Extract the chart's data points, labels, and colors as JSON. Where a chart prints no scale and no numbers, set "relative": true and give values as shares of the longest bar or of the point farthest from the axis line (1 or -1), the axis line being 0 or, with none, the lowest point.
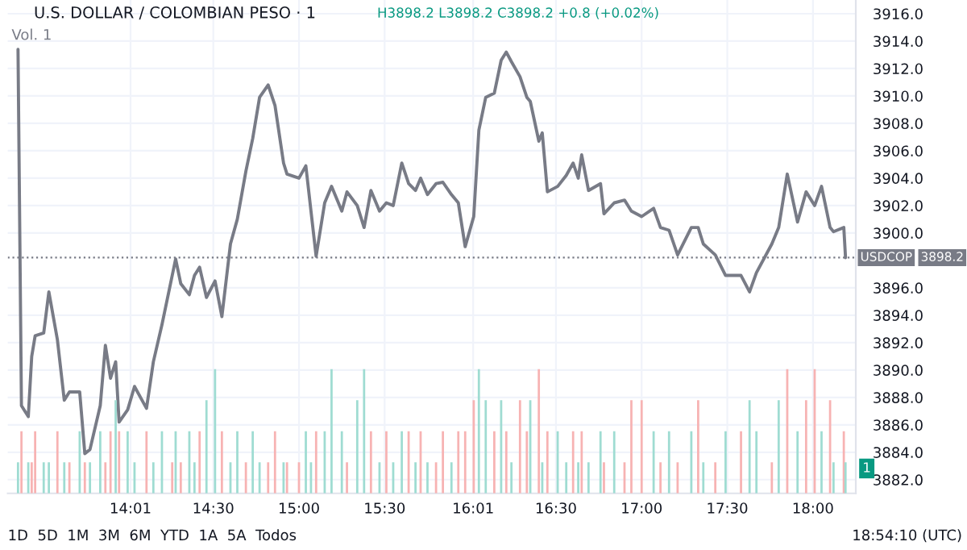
{
  "chart_data": [
    {
      "type": "line",
      "title": "U.S. DOLLAR / COLOMBIAN PESO · 1",
      "subtitle": "H3898.2 L3898.2 C3898.2 +0.8 (+0.02%)",
      "x": [
        13.36,
        13.38,
        13.42,
        13.44,
        13.46,
        13.51,
        13.54,
        13.59,
        13.63,
        13.66,
        13.72,
        13.75,
        13.78,
        13.84,
        13.87,
        13.9,
        13.93,
        13.95,
        14.0,
        14.04,
        14.11,
        14.15,
        14.2,
        14.26,
        14.28,
        14.31,
        14.36,
        14.39,
        14.42,
        14.46,
        14.51,
        14.55,
        14.6,
        14.64,
        14.69,
        14.73,
        14.77,
        14.82,
        14.86,
        14.91,
        14.93,
        15.0,
        15.04,
        15.07,
        15.1,
        15.15,
        15.19,
        15.25,
        15.28,
        15.34,
        15.38,
        15.42,
        15.47,
        15.51,
        15.55,
        15.6,
        15.64,
        15.68,
        15.71,
        15.75,
        15.8,
        15.84,
        15.89,
        15.93,
        15.97,
        16.02,
        16.05,
        16.09,
        16.14,
        16.18,
        16.21,
        16.24,
        16.29,
        16.33,
        16.35,
        16.4,
        16.42,
        16.45,
        16.51,
        16.56,
        16.6,
        16.63,
        16.65,
        16.69,
        16.76,
        16.78,
        16.84,
        16.9,
        16.94,
        17.0,
        17.07,
        17.11,
        17.16,
        17.21,
        17.29,
        17.33,
        17.36,
        17.43,
        17.49,
        17.58,
        17.63,
        17.67,
        17.76,
        17.8,
        17.85,
        17.91,
        17.96,
        18.01,
        18.05,
        18.1,
        18.12,
        18.18,
        18.19
      ],
      "series": [
        {
          "color": "#787b86",
          "values": [
            3913.4,
            3887.4,
            3886.6,
            3891.0,
            3892.5,
            3892.7,
            3895.7,
            3892.2,
            3887.8,
            3888.4,
            3888.4,
            3883.9,
            3884.2,
            3887.4,
            3891.8,
            3889.4,
            3890.6,
            3886.2,
            3887.1,
            3888.8,
            3887.2,
            3890.6,
            3893.3,
            3896.9,
            3898.1,
            3896.3,
            3895.5,
            3896.9,
            3897.5,
            3895.3,
            3896.5,
            3893.9,
            3899.2,
            3901.0,
            3904.5,
            3906.9,
            3909.9,
            3910.8,
            3909.3,
            3905.1,
            3904.3,
            3904.0,
            3904.9,
            3901.6,
            3898.3,
            3902.2,
            3903.4,
            3901.6,
            3903.0,
            3902.0,
            3900.4,
            3903.1,
            3901.6,
            3902.2,
            3902.0,
            3905.1,
            3903.6,
            3903.1,
            3904.0,
            3902.8,
            3903.6,
            3903.7,
            3902.8,
            3902.2,
            3899.0,
            3901.2,
            3907.5,
            3909.9,
            3910.2,
            3912.6,
            3913.2,
            3912.5,
            3911.4,
            3909.9,
            3909.6,
            3906.7,
            3907.3,
            3903.0,
            3903.4,
            3904.2,
            3905.1,
            3904.0,
            3905.7,
            3903.1,
            3903.6,
            3901.4,
            3902.2,
            3902.4,
            3901.6,
            3901.2,
            3901.8,
            3900.4,
            3900.2,
            3898.4,
            3900.4,
            3900.4,
            3899.2,
            3898.4,
            3896.9,
            3896.9,
            3895.7,
            3897.1,
            3899.2,
            3900.4,
            3904.3,
            3900.8,
            3903.0,
            3902.0,
            3903.4,
            3900.4,
            3900.1,
            3900.4,
            3898.2
          ]
        }
      ],
      "xlim": [
        13.3,
        18.25
      ],
      "xticks": [
        {
          "value": 14.0167,
          "label": "14:01"
        },
        {
          "value": 14.5,
          "label": "14:30"
        },
        {
          "value": 15,
          "label": "15:00"
        },
        {
          "value": 15.5,
          "label": "15:30"
        },
        {
          "value": 16.0167,
          "label": "16:01"
        },
        {
          "value": 16.5,
          "label": "16:30"
        },
        {
          "value": 17,
          "label": "17:00"
        },
        {
          "value": 17.5,
          "label": "17:30"
        },
        {
          "value": 18,
          "label": "18:00"
        }
      ],
      "ylim": [
        3881,
        3917
      ],
      "yticks": [
        {
          "value": 3882,
          "label": "3882.0"
        },
        {
          "value": 3884,
          "label": "3884.0"
        },
        {
          "value": 3886,
          "label": "3886.0"
        },
        {
          "value": 3888,
          "label": "3888.0"
        },
        {
          "value": 3890,
          "label": "3890.0"
        },
        {
          "value": 3892,
          "label": "3892.0"
        },
        {
          "value": 3894,
          "label": "3894.0"
        },
        {
          "value": 3896,
          "label": "3896.0"
        },
        {
          "value": 3900,
          "label": "3900.0"
        },
        {
          "value": 3902,
          "label": "3902.0"
        },
        {
          "value": 3904,
          "label": "3904.0"
        },
        {
          "value": 3906,
          "label": "3906.0"
        },
        {
          "value": 3908,
          "label": "3908.0"
        },
        {
          "value": 3910,
          "label": "3910.0"
        },
        {
          "value": 3912,
          "label": "3912.0"
        },
        {
          "value": 3914,
          "label": "3914.0"
        },
        {
          "value": 3916,
          "label": "3916.0"
        }
      ],
      "grid": true,
      "line_style": "solid",
      "ref_lines": [
        {
          "axis": "y",
          "value": 3898.2,
          "label": "USDCOP",
          "color": "#787b86",
          "line_style": "dotted"
        }
      ],
      "annotations": [
        "Vol. 1",
        "1D  5D  1M  3M  6M  YTD  1A  5A  Todos",
        "18:54:10 (UTC)",
        "3898.2"
      ]
    },
    {
      "type": "bar",
      "relative": true,
      "tick_labels": false,
      "x": [
        13.36,
        13.38,
        13.42,
        13.44,
        13.46,
        13.51,
        13.54,
        13.59,
        13.63,
        13.66,
        13.72,
        13.75,
        13.78,
        13.84,
        13.87,
        13.9,
        13.93,
        13.95,
        14.0,
        14.04,
        14.11,
        14.15,
        14.2,
        14.26,
        14.28,
        14.31,
        14.36,
        14.39,
        14.42,
        14.46,
        14.51,
        14.55,
        14.6,
        14.64,
        14.69,
        14.73,
        14.77,
        14.82,
        14.86,
        14.91,
        14.93,
        15.0,
        15.04,
        15.07,
        15.1,
        15.15,
        15.19,
        15.25,
        15.28,
        15.34,
        15.38,
        15.42,
        15.47,
        15.51,
        15.55,
        15.6,
        15.64,
        15.68,
        15.71,
        15.75,
        15.8,
        15.84,
        15.89,
        15.93,
        15.97,
        16.02,
        16.05,
        16.09,
        16.14,
        16.18,
        16.21,
        16.24,
        16.29,
        16.33,
        16.35,
        16.4,
        16.42,
        16.45,
        16.51,
        16.56,
        16.6,
        16.63,
        16.65,
        16.69,
        16.76,
        16.78,
        16.84,
        16.9,
        16.94,
        17.0,
        17.07,
        17.11,
        17.16,
        17.21,
        17.29,
        17.33,
        17.36,
        17.43,
        17.49,
        17.58,
        17.63,
        17.67,
        17.76,
        17.8,
        17.85,
        17.91,
        17.96,
        18.01,
        18.05,
        18.1,
        18.12,
        18.18,
        18.19
      ],
      "xlim": [
        13.3,
        18.25
      ],
      "values": [
        0.25,
        0.5,
        0.25,
        0.25,
        0.5,
        0.25,
        0.25,
        0.5,
        0.25,
        0.25,
        0.5,
        0.25,
        0.25,
        0.5,
        0.25,
        0.5,
        0.75,
        0.5,
        0.5,
        0.25,
        0.5,
        0.25,
        0.5,
        0.25,
        0.5,
        0.25,
        0.5,
        0.25,
        0.5,
        0.75,
        1,
        0.5,
        0.25,
        0.5,
        0.25,
        0.5,
        0.25,
        0.25,
        0.5,
        0.25,
        0.25,
        0.25,
        0.5,
        0.25,
        0.5,
        0.5,
        1,
        0.5,
        0.25,
        0.75,
        1,
        0.5,
        0.25,
        0.5,
        0.25,
        0.5,
        0.5,
        0.25,
        0.5,
        0.25,
        0.25,
        0.5,
        0.25,
        0.5,
        0.5,
        0.75,
        1,
        0.75,
        0.5,
        0.75,
        0.5,
        0.25,
        0.75,
        0.5,
        0.75,
        1,
        0.25,
        0.5,
        0.5,
        0.25,
        0.5,
        0.25,
        0.5,
        0.25,
        0.5,
        0.25,
        0.5,
        0.25,
        0.75,
        0.75,
        0.5,
        0.25,
        0.5,
        0.25,
        0.5,
        0.75,
        0.25,
        0.25,
        0.5,
        0.5,
        0.75,
        0.5,
        0.25,
        0.75,
        1,
        0.5,
        0.75,
        1,
        0.5,
        0.75,
        0.25,
        0.5,
        0.25
      ],
      "colors": [
        "#9fdcd2",
        "#f7b3b3",
        "#9fdcd2",
        "#f7b3b3",
        "#f7b3b3",
        "#9fdcd2",
        "#9fdcd2",
        "#f7b3b3",
        "#9fdcd2",
        "#f7b3b3",
        "#9fdcd2",
        "#f7b3b3",
        "#9fdcd2",
        "#9fdcd2",
        "#f7b3b3",
        "#f7b3b3",
        "#9fdcd2",
        "#f7b3b3",
        "#9fdcd2",
        "#9fdcd2",
        "#f7b3b3",
        "#9fdcd2",
        "#9fdcd2",
        "#f7b3b3",
        "#9fdcd2",
        "#f7b3b3",
        "#9fdcd2",
        "#9fdcd2",
        "#f7b3b3",
        "#9fdcd2",
        "#9fdcd2",
        "#f7b3b3",
        "#9fdcd2",
        "#9fdcd2",
        "#f7b3b3",
        "#9fdcd2",
        "#9fdcd2",
        "#f7b3b3",
        "#f7b3b3",
        "#9fdcd2",
        "#f7b3b3",
        "#f7b3b3",
        "#9fdcd2",
        "#9fdcd2",
        "#f7b3b3",
        "#9fdcd2",
        "#9fdcd2",
        "#9fdcd2",
        "#f7b3b3",
        "#9fdcd2",
        "#9fdcd2",
        "#f7b3b3",
        "#9fdcd2",
        "#f7b3b3",
        "#9fdcd2",
        "#9fdcd2",
        "#f7b3b3",
        "#9fdcd2",
        "#f7b3b3",
        "#9fdcd2",
        "#f7b3b3",
        "#f7b3b3",
        "#9fdcd2",
        "#f7b3b3",
        "#f7b3b3",
        "#f7b3b3",
        "#9fdcd2",
        "#9fdcd2",
        "#f7b3b3",
        "#9fdcd2",
        "#f7b3b3",
        "#9fdcd2",
        "#f7b3b3",
        "#f7b3b3",
        "#9fdcd2",
        "#f7b3b3",
        "#9fdcd2",
        "#f7b3b3",
        "#9fdcd2",
        "#9fdcd2",
        "#f7b3b3",
        "#9fdcd2",
        "#f7b3b3",
        "#9fdcd2",
        "#9fdcd2",
        "#f7b3b3",
        "#9fdcd2",
        "#f7b3b3",
        "#f7b3b3",
        "#f7b3b3",
        "#9fdcd2",
        "#f7b3b3",
        "#9fdcd2",
        "#f7b3b3",
        "#9fdcd2",
        "#f7b3b3",
        "#9fdcd2",
        "#f7b3b3",
        "#9fdcd2",
        "#f7b3b3",
        "#9fdcd2",
        "#9fdcd2",
        "#f7b3b3",
        "#9fdcd2",
        "#f7b3b3",
        "#9fdcd2",
        "#f7b3b3",
        "#f7b3b3",
        "#9fdcd2",
        "#f7b3b3",
        "#9fdcd2",
        "#f7b3b3",
        "#9fdcd2"
      ],
      "annotations": [
        "1"
      ]
    }
  ]
}
